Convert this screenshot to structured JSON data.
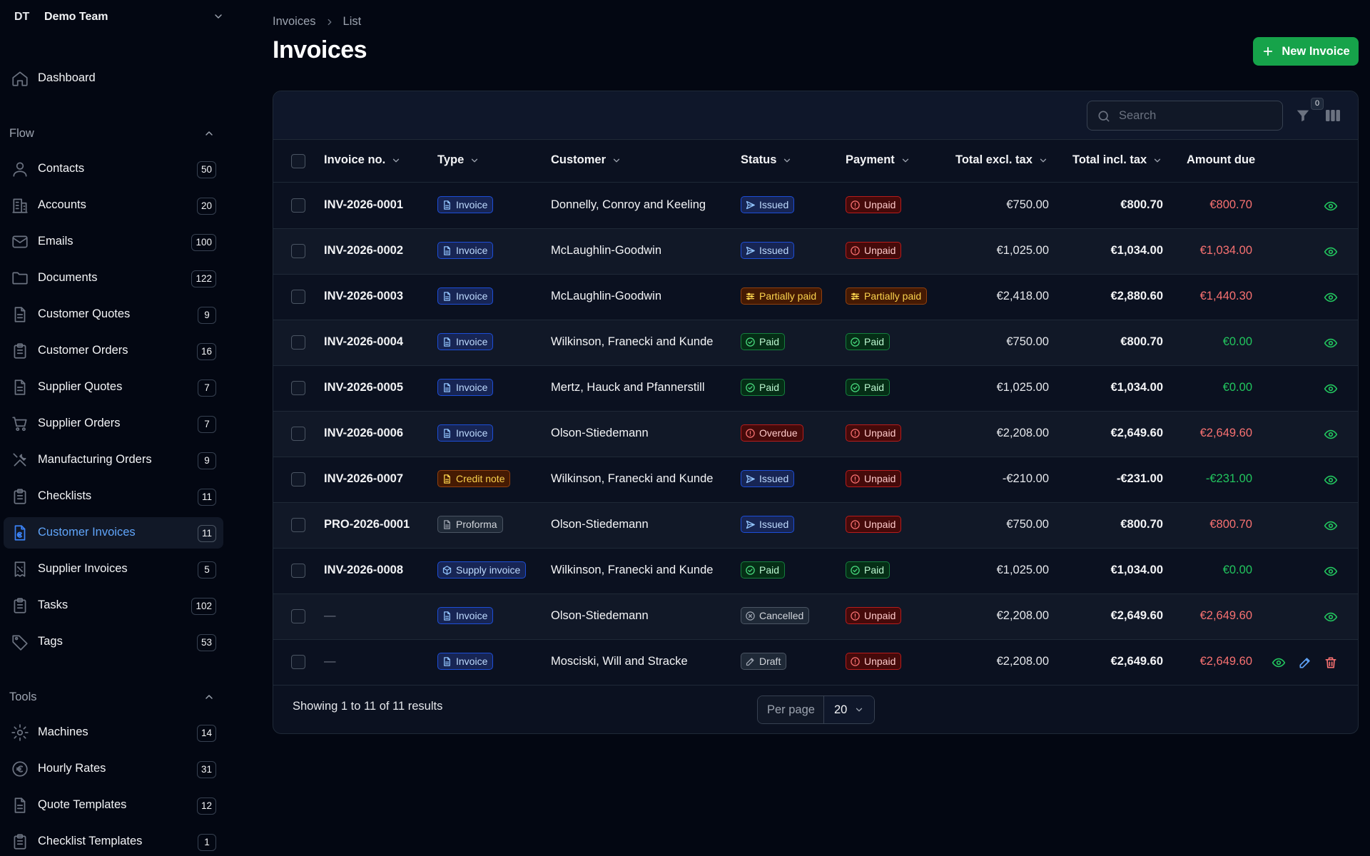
{
  "team": {
    "abbr": "DT",
    "name": "Demo Team"
  },
  "sidebar": {
    "dashboard": {
      "label": "Dashboard",
      "icon": "home-icon"
    },
    "flow_label": "Flow",
    "flow": [
      {
        "label": "Contacts",
        "count": "50",
        "icon": "user-icon"
      },
      {
        "label": "Accounts",
        "count": "20",
        "icon": "building-icon"
      },
      {
        "label": "Emails",
        "count": "100",
        "icon": "mail-icon"
      },
      {
        "label": "Documents",
        "count": "122",
        "icon": "folder-icon"
      },
      {
        "label": "Customer Quotes",
        "count": "9",
        "icon": "document-icon"
      },
      {
        "label": "Customer Orders",
        "count": "16",
        "icon": "clipboard-icon"
      },
      {
        "label": "Supplier Quotes",
        "count": "7",
        "icon": "document-icon"
      },
      {
        "label": "Supplier Orders",
        "count": "7",
        "icon": "cart-icon"
      },
      {
        "label": "Manufacturing Orders",
        "count": "9",
        "icon": "tools-icon"
      },
      {
        "label": "Checklists",
        "count": "11",
        "icon": "clipboard-icon"
      },
      {
        "label": "Customer Invoices",
        "count": "11",
        "icon": "euro-document-icon",
        "active": true
      },
      {
        "label": "Supplier Invoices",
        "count": "5",
        "icon": "receipt-icon"
      },
      {
        "label": "Tasks",
        "count": "102",
        "icon": "clipboard-icon"
      },
      {
        "label": "Tags",
        "count": "53",
        "icon": "tag-icon"
      }
    ],
    "tools_label": "Tools",
    "tools": [
      {
        "label": "Machines",
        "count": "14",
        "icon": "gear-icon"
      },
      {
        "label": "Hourly Rates",
        "count": "31",
        "icon": "euro-icon"
      },
      {
        "label": "Quote Templates",
        "count": "12",
        "icon": "document-icon"
      },
      {
        "label": "Checklist Templates",
        "count": "1",
        "icon": "clipboard-icon"
      }
    ]
  },
  "breadcrumb": {
    "root": "Invoices",
    "current": "List"
  },
  "page_title": "Invoices",
  "new_button": "New Invoice",
  "search": {
    "placeholder": "Search",
    "value": ""
  },
  "filter_count": "0",
  "columns": {
    "invoice_no": "Invoice no.",
    "type": "Type",
    "customer": "Customer",
    "status": "Status",
    "payment": "Payment",
    "total_excl": "Total excl. tax",
    "total_incl": "Total incl. tax",
    "amount_due": "Amount due"
  },
  "rows": [
    {
      "no": "INV-2026-0001",
      "type": "Invoice",
      "type_style": "blue",
      "customer": "Donnelly, Conroy and Keeling",
      "status": "Issued",
      "status_style": "issued",
      "payment": "Unpaid",
      "payment_style": "unpaid",
      "excl": "€750.00",
      "incl": "€800.70",
      "due": "€800.70",
      "due_style": "red"
    },
    {
      "no": "INV-2026-0002",
      "type": "Invoice",
      "type_style": "blue",
      "customer": "McLaughlin-Goodwin",
      "status": "Issued",
      "status_style": "issued",
      "payment": "Unpaid",
      "payment_style": "unpaid",
      "excl": "€1,025.00",
      "incl": "€1,034.00",
      "due": "€1,034.00",
      "due_style": "red"
    },
    {
      "no": "INV-2026-0003",
      "type": "Invoice",
      "type_style": "blue",
      "customer": "McLaughlin-Goodwin",
      "status": "Partially paid",
      "status_style": "partial",
      "payment": "Partially paid",
      "payment_style": "partial",
      "excl": "€2,418.00",
      "incl": "€2,880.60",
      "due": "€1,440.30",
      "due_style": "red"
    },
    {
      "no": "INV-2026-0004",
      "type": "Invoice",
      "type_style": "blue",
      "customer": "Wilkinson, Franecki and Kunde",
      "status": "Paid",
      "status_style": "paid",
      "payment": "Paid",
      "payment_style": "paid",
      "excl": "€750.00",
      "incl": "€800.70",
      "due": "€0.00",
      "due_style": "green"
    },
    {
      "no": "INV-2026-0005",
      "type": "Invoice",
      "type_style": "blue",
      "customer": "Mertz, Hauck and Pfannerstill",
      "status": "Paid",
      "status_style": "paid",
      "payment": "Paid",
      "payment_style": "paid",
      "excl": "€1,025.00",
      "incl": "€1,034.00",
      "due": "€0.00",
      "due_style": "green"
    },
    {
      "no": "INV-2026-0006",
      "type": "Invoice",
      "type_style": "blue",
      "customer": "Olson-Stiedemann",
      "status": "Overdue",
      "status_style": "overdue",
      "payment": "Unpaid",
      "payment_style": "unpaid",
      "excl": "€2,208.00",
      "incl": "€2,649.60",
      "due": "€2,649.60",
      "due_style": "red"
    },
    {
      "no": "INV-2026-0007",
      "type": "Credit note",
      "type_style": "amber",
      "customer": "Wilkinson, Franecki and Kunde",
      "status": "Issued",
      "status_style": "issued",
      "payment": "Unpaid",
      "payment_style": "unpaid",
      "excl": "-€210.00",
      "incl": "-€231.00",
      "due": "-€231.00",
      "due_style": "green"
    },
    {
      "no": "PRO-2026-0001",
      "type": "Proforma",
      "type_style": "gray",
      "customer": "Olson-Stiedemann",
      "status": "Issued",
      "status_style": "issued",
      "payment": "Unpaid",
      "payment_style": "unpaid",
      "excl": "€750.00",
      "incl": "€800.70",
      "due": "€800.70",
      "due_style": "red"
    },
    {
      "no": "INV-2026-0008",
      "type": "Supply invoice",
      "type_style": "blue-box",
      "customer": "Wilkinson, Franecki and Kunde",
      "status": "Paid",
      "status_style": "paid",
      "payment": "Paid",
      "payment_style": "paid",
      "excl": "€1,025.00",
      "incl": "€1,034.00",
      "due": "€0.00",
      "due_style": "green"
    },
    {
      "no": "—",
      "type": "Invoice",
      "type_style": "blue",
      "customer": "Olson-Stiedemann",
      "status": "Cancelled",
      "status_style": "cancelled",
      "payment": "Unpaid",
      "payment_style": "unpaid",
      "excl": "€2,208.00",
      "incl": "€2,649.60",
      "due": "€2,649.60",
      "due_style": "red"
    },
    {
      "no": "—",
      "type": "Invoice",
      "type_style": "blue",
      "customer": "Mosciski, Will and Stracke",
      "status": "Draft",
      "status_style": "draft",
      "payment": "Unpaid",
      "payment_style": "unpaid",
      "excl": "€2,208.00",
      "incl": "€2,649.60",
      "due": "€2,649.60",
      "due_style": "red",
      "editable": true
    }
  ],
  "footer": {
    "showing": "Showing 1 to 11 of 11 results",
    "per_page_label": "Per page",
    "per_page_value": "20"
  },
  "colors": {
    "accent": "#16a34a",
    "active_nav": "#60a5fa",
    "due_red": "#f87171",
    "due_green": "#22c55e"
  }
}
